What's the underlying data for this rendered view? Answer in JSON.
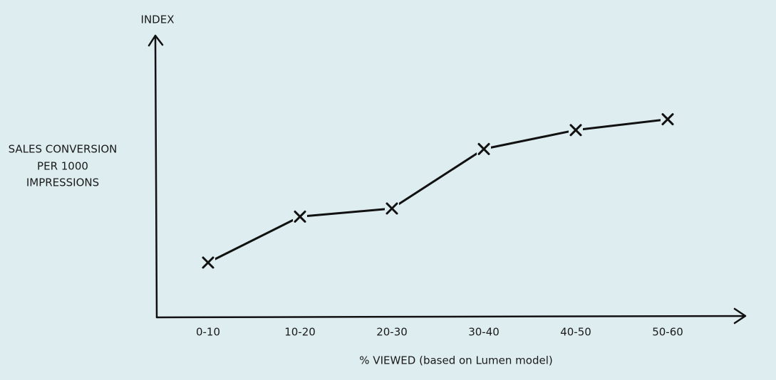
{
  "chart_data": {
    "type": "line",
    "ylabel_top": "INDEX",
    "ylabel": [
      "SALES CONVERSION",
      "PER 1000",
      "IMPRESSIONS"
    ],
    "xlabel": "% VIEWED (based on Lumen model)",
    "categories": [
      "0-10",
      "10-20",
      "20-30",
      "30-40",
      "40-50",
      "50-60"
    ],
    "values": [
      20,
      37,
      40,
      62,
      69,
      73
    ],
    "color": "#111111",
    "ylim": [
      0,
      100
    ]
  }
}
